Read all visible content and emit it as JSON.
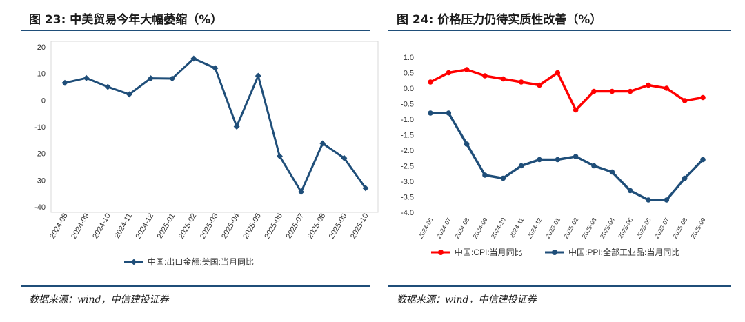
{
  "titles": {
    "left": "图 23:  中美贸易今年大幅萎缩（%）",
    "right": "图 24:  价格压力仍待实质性改善（%）"
  },
  "sources": {
    "left": "数据来源：wind，中信建投证券",
    "right": "数据来源：wind，中信建投证券"
  },
  "colors": {
    "navy": "#1f4e79",
    "red": "#ff0000",
    "rule": "#1f4e79"
  },
  "chart_data": [
    {
      "type": "line",
      "title": "中美贸易今年大幅萎缩（%）",
      "categories": [
        "2024-08",
        "2024-09",
        "2024-10",
        "2024-11",
        "2024-12",
        "2025-01",
        "2025-02",
        "2025-03",
        "2025-04",
        "2025-05",
        "2025-06",
        "2025-07",
        "2025-08",
        "2025-09",
        "2025-10"
      ],
      "series": [
        {
          "name": "中国:出口金额:美国:当月同比",
          "color": "#1f4e79",
          "values": [
            6.5,
            8.3,
            5.0,
            2.2,
            8.2,
            8.1,
            15.6,
            12.0,
            -9.9,
            9.1,
            -21.0,
            -34.4,
            -16.2,
            -21.7,
            -33.0
          ]
        }
      ],
      "ylim": [
        -40,
        20
      ],
      "yticks": [
        20,
        10,
        0,
        -10,
        -20,
        -30,
        -40
      ],
      "legend": "bottom"
    },
    {
      "type": "line",
      "title": "价格压力仍待实质性改善（%）",
      "categories": [
        "2024-06",
        "2024-07",
        "2024-08",
        "2024-09",
        "2024-10",
        "2024-11",
        "2024-12",
        "2025-01",
        "2025-02",
        "2025-03",
        "2025-04",
        "2025-05",
        "2025-06",
        "2025-07",
        "2025-08",
        "2025-09"
      ],
      "series": [
        {
          "name": "中国:CPI:当月同比",
          "color": "#ff0000",
          "values": [
            0.2,
            0.5,
            0.6,
            0.4,
            0.3,
            0.2,
            0.1,
            0.5,
            -0.7,
            -0.1,
            -0.1,
            -0.1,
            0.1,
            0.0,
            -0.4,
            -0.3
          ]
        },
        {
          "name": "中国:PPI:全部工业品:当月同比",
          "color": "#1f4e79",
          "values": [
            -0.8,
            -0.8,
            -1.8,
            -2.8,
            -2.9,
            -2.5,
            -2.3,
            -2.3,
            -2.2,
            -2.5,
            -2.7,
            -3.3,
            -3.6,
            -3.6,
            -2.9,
            -2.3
          ]
        }
      ],
      "ylim": [
        -4.0,
        1.0
      ],
      "yticks": [
        "1.0",
        "0.5",
        "0.0",
        "-0.5",
        "-1.0",
        "-1.5",
        "-2.0",
        "-2.5",
        "-3.0",
        "-3.5",
        "-4.0"
      ],
      "legend": "bottom"
    }
  ]
}
